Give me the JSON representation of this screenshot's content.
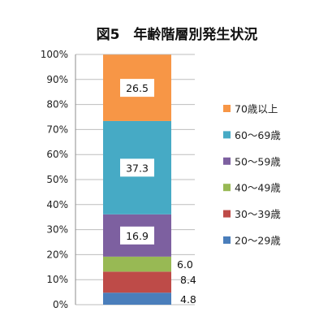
{
  "chart_data": {
    "type": "bar",
    "stacked": true,
    "title": "図5　年齢階層別発生状況",
    "categories": [
      ""
    ],
    "series": [
      {
        "name": "20〜29歳",
        "values": [
          4.8
        ],
        "color": "#4a7ebb"
      },
      {
        "name": "30〜39歳",
        "values": [
          8.4
        ],
        "color": "#be4b48"
      },
      {
        "name": "40〜49歳",
        "values": [
          6.0
        ],
        "color": "#98b954"
      },
      {
        "name": "50〜59歳",
        "values": [
          16.9
        ],
        "color": "#7d60a0"
      },
      {
        "name": "60〜69歳",
        "values": [
          37.3
        ],
        "color": "#46aac5"
      },
      {
        "name": "70歳以上",
        "values": [
          26.5
        ],
        "color": "#f79646"
      }
    ],
    "data_labels": [
      "4.8",
      "8.4",
      "6.0",
      "16.9",
      "37.3",
      "26.5"
    ],
    "yticks": [
      "0%",
      "10%",
      "20%",
      "30%",
      "40%",
      "50%",
      "60%",
      "70%",
      "80%",
      "90%",
      "100%"
    ],
    "ylim": [
      0,
      100
    ],
    "grid": true,
    "legend_position": "right",
    "legend_order": "reversed"
  }
}
